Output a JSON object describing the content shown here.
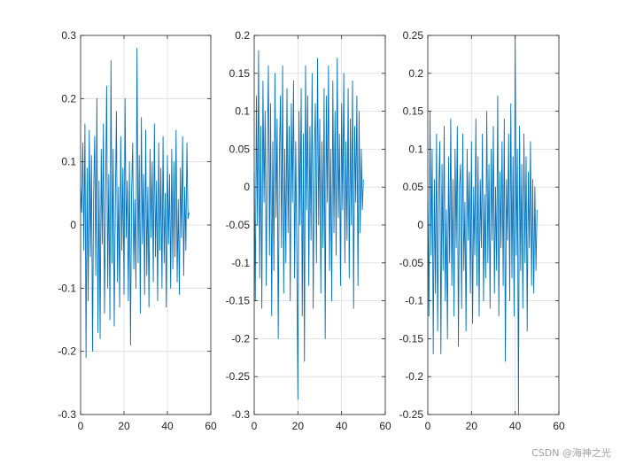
{
  "chart_data": [
    {
      "type": "line",
      "title": "",
      "xlabel": "",
      "ylabel": "",
      "xlim": [
        0,
        60
      ],
      "ylim": [
        -0.3,
        0.3
      ],
      "grid": true,
      "color": "#0072BD",
      "xticks": [
        0,
        20,
        40,
        60
      ],
      "xtick_labels": [
        "0",
        "20",
        "40",
        "60"
      ],
      "yticks": [
        -0.3,
        -0.2,
        -0.1,
        0,
        0.1,
        0.2,
        0.3
      ],
      "ytick_labels": [
        "-0.3",
        "-0.2",
        "-0.1",
        "0",
        "0.1",
        "0.2",
        "0.3"
      ],
      "series": [
        {
          "x": [
            0,
            0.5,
            1,
            1.5,
            2,
            2.5,
            3,
            3.5,
            4,
            4.5,
            5,
            5.5,
            6,
            6.5,
            7,
            7.5,
            8,
            8.5,
            9,
            9.5,
            10,
            10.5,
            11,
            11.5,
            12,
            12.5,
            13,
            13.5,
            14,
            14.5,
            15,
            15.5,
            16,
            16.5,
            17,
            17.5,
            18,
            18.5,
            19,
            19.5,
            20,
            20.5,
            21,
            21.5,
            22,
            22.5,
            23,
            23.5,
            24,
            24.5,
            25,
            25.5,
            26,
            26.5,
            27,
            27.5,
            28,
            28.5,
            29,
            29.5,
            30,
            30.5,
            31,
            31.5,
            32,
            32.5,
            33,
            33.5,
            34,
            34.5,
            35,
            35.5,
            36,
            36.5,
            37,
            37.5,
            38,
            38.5,
            39,
            39.5,
            40,
            40.5,
            41,
            41.5,
            42,
            42.5,
            43,
            43.5,
            44,
            44.5,
            45,
            45.5,
            46,
            46.5,
            47,
            47.5,
            48,
            48.5,
            49,
            49.5,
            50
          ],
          "y": [
            0.06,
            0.02,
            0.13,
            -0.04,
            0.16,
            -0.21,
            0.09,
            -0.12,
            0.15,
            -0.05,
            0.11,
            -0.2,
            0.05,
            0.14,
            -0.08,
            0.2,
            -0.17,
            0.07,
            -0.18,
            0.12,
            -0.03,
            0.16,
            -0.14,
            0.04,
            0.22,
            -0.1,
            0.08,
            -0.15,
            0.26,
            -0.06,
            0.12,
            -0.16,
            0.03,
            0.18,
            -0.09,
            0.06,
            -0.13,
            0.14,
            -0.04,
            0.09,
            -0.11,
            0.2,
            -0.02,
            0.07,
            -0.12,
            0.1,
            -0.19,
            0.05,
            0.13,
            -0.07,
            0.04,
            -0.1,
            0.28,
            -0.06,
            0.11,
            -0.14,
            0.17,
            -0.03,
            0.08,
            -0.11,
            0.15,
            -0.08,
            0.06,
            -0.13,
            0.12,
            -0.02,
            0.1,
            -0.09,
            0.16,
            -0.05,
            0.07,
            -0.12,
            0.13,
            -0.04,
            0.09,
            -0.1,
            0.14,
            -0.06,
            0.05,
            -0.13,
            0.11,
            -0.03,
            0.08,
            -0.1,
            0.12,
            -0.07,
            0.1,
            -0.05,
            0.15,
            -0.09,
            0.04,
            -0.11,
            0.09,
            -0.02,
            0.14,
            -0.08,
            0.06,
            -0.04,
            0.13,
            0.01,
            0.02
          ]
        }
      ]
    },
    {
      "type": "line",
      "title": "",
      "xlabel": "",
      "ylabel": "",
      "xlim": [
        0,
        60
      ],
      "ylim": [
        -0.3,
        0.2
      ],
      "grid": true,
      "color": "#0072BD",
      "xticks": [
        0,
        20,
        40,
        60
      ],
      "xtick_labels": [
        "0",
        "20",
        "40",
        "60"
      ],
      "yticks": [
        -0.3,
        -0.25,
        -0.2,
        -0.15,
        -0.1,
        -0.05,
        0,
        0.05,
        0.1,
        0.15,
        0.2
      ],
      "ytick_labels": [
        "-0.3",
        "-0.25",
        "-0.2",
        "-0.15",
        "-0.1",
        "-0.05",
        "0",
        "0.05",
        "0.1",
        "0.15",
        "0.2"
      ],
      "series": [
        {
          "x": [
            0,
            0.5,
            1,
            1.5,
            2,
            2.5,
            3,
            3.5,
            4,
            4.5,
            5,
            5.5,
            6,
            6.5,
            7,
            7.5,
            8,
            8.5,
            9,
            9.5,
            10,
            10.5,
            11,
            11.5,
            12,
            12.5,
            13,
            13.5,
            14,
            14.5,
            15,
            15.5,
            16,
            16.5,
            17,
            17.5,
            18,
            18.5,
            19,
            19.5,
            20,
            20.5,
            21,
            21.5,
            22,
            22.5,
            23,
            23.5,
            24,
            24.5,
            25,
            25.5,
            26,
            26.5,
            27,
            27.5,
            28,
            28.5,
            29,
            29.5,
            30,
            30.5,
            31,
            31.5,
            32,
            32.5,
            33,
            33.5,
            34,
            34.5,
            35,
            35.5,
            36,
            36.5,
            37,
            37.5,
            38,
            38.5,
            39,
            39.5,
            40,
            40.5,
            41,
            41.5,
            42,
            42.5,
            43,
            43.5,
            44,
            44.5,
            45,
            45.5,
            46,
            46.5,
            47,
            47.5,
            48,
            48.5,
            49,
            49.5,
            50
          ],
          "y": [
            0.02,
            -0.15,
            0.12,
            -0.05,
            0.18,
            -0.12,
            0.08,
            -0.16,
            0.14,
            -0.02,
            0.1,
            -0.13,
            0.04,
            0.16,
            -0.09,
            0.11,
            -0.17,
            0.06,
            -0.11,
            0.15,
            -0.04,
            0.09,
            -0.2,
            0.03,
            0.12,
            -0.08,
            0.16,
            -0.14,
            0.05,
            -0.1,
            0.13,
            -0.06,
            0.08,
            -0.15,
            0.11,
            -0.02,
            0.14,
            -0.12,
            0.06,
            -0.09,
            -0.28,
            0.1,
            -0.05,
            0.13,
            -0.17,
            0.07,
            -0.23,
            0.16,
            -0.03,
            0.12,
            -0.13,
            0.08,
            -0.07,
            0.15,
            -0.16,
            0.04,
            0.11,
            -0.1,
            0.17,
            -0.05,
            0.09,
            -0.14,
            0.06,
            -0.08,
            0.13,
            -0.2,
            0.12,
            -0.02,
            0.16,
            -0.11,
            0.05,
            -0.15,
            0.14,
            -0.06,
            0.1,
            -0.09,
            0.17,
            -0.04,
            0.07,
            -0.13,
            0.11,
            -0.03,
            0.15,
            -0.1,
            0.06,
            -0.07,
            0.13,
            -0.12,
            0.09,
            -0.05,
            0.14,
            -0.16,
            0.08,
            -0.02,
            0.12,
            -0.13,
            0.1,
            -0.06,
            0.05,
            -0.03,
            0.01
          ]
        }
      ]
    },
    {
      "type": "line",
      "title": "",
      "xlabel": "",
      "ylabel": "",
      "xlim": [
        0,
        60
      ],
      "ylim": [
        -0.25,
        0.25
      ],
      "grid": true,
      "color": "#0072BD",
      "xticks": [
        0,
        20,
        40,
        60
      ],
      "xtick_labels": [
        "0",
        "20",
        "40",
        "60"
      ],
      "yticks": [
        -0.25,
        -0.2,
        -0.15,
        -0.1,
        -0.05,
        0,
        0.05,
        0.1,
        0.15,
        0.2,
        0.25
      ],
      "ytick_labels": [
        "-0.25",
        "-0.2",
        "-0.15",
        "-0.1",
        "-0.05",
        "0",
        "0.05",
        "0.1",
        "0.15",
        "0.2",
        "0.25"
      ],
      "series": [
        {
          "x": [
            0,
            0.5,
            1,
            1.5,
            2,
            2.5,
            3,
            3.5,
            4,
            4.5,
            5,
            5.5,
            6,
            6.5,
            7,
            7.5,
            8,
            8.5,
            9,
            9.5,
            10,
            10.5,
            11,
            11.5,
            12,
            12.5,
            13,
            13.5,
            14,
            14.5,
            15,
            15.5,
            16,
            16.5,
            17,
            17.5,
            18,
            18.5,
            19,
            19.5,
            20,
            20.5,
            21,
            21.5,
            22,
            22.5,
            23,
            23.5,
            24,
            24.5,
            25,
            25.5,
            26,
            26.5,
            27,
            27.5,
            28,
            28.5,
            29,
            29.5,
            30,
            30.5,
            31,
            31.5,
            32,
            32.5,
            33,
            33.5,
            34,
            34.5,
            35,
            35.5,
            36,
            36.5,
            37,
            37.5,
            38,
            38.5,
            39,
            39.5,
            40,
            40.5,
            41,
            41.5,
            42,
            42.5,
            43,
            43.5,
            44,
            44.5,
            45,
            45.5,
            46,
            46.5,
            47,
            47.5,
            48,
            48.5,
            49,
            49.5,
            50
          ],
          "y": [
            0.03,
            -0.12,
            0.15,
            -0.04,
            0.1,
            -0.17,
            0.06,
            -0.09,
            0.12,
            -0.14,
            0.04,
            0.11,
            -0.17,
            0.08,
            -0.06,
            0.13,
            -0.1,
            0.02,
            -0.15,
            0.09,
            -0.05,
            0.14,
            -0.08,
            0.06,
            -0.12,
            0.1,
            -0.03,
            0.13,
            -0.16,
            0.05,
            0.08,
            -0.11,
            0.12,
            -0.06,
            0.03,
            -0.14,
            0.1,
            -0.02,
            0.07,
            -0.09,
            0.11,
            -0.13,
            0.05,
            -0.04,
            0.14,
            -0.08,
            0.09,
            -0.12,
            0.06,
            -0.03,
            0.12,
            -0.1,
            0.04,
            -0.07,
            0.15,
            -0.05,
            0.08,
            -0.11,
            0.1,
            -0.02,
            0.13,
            -0.09,
            0.05,
            -0.06,
            0.17,
            -0.12,
            0.07,
            -0.03,
            0.11,
            -0.08,
            0.14,
            -0.18,
            0.06,
            -0.02,
            0.12,
            -0.1,
            0.16,
            -0.07,
            0.09,
            -0.12,
            0.25,
            -0.04,
            0.1,
            -0.25,
            0.13,
            -0.06,
            0.08,
            -0.11,
            0.12,
            -0.05,
            0.09,
            -0.14,
            0.07,
            -0.03,
            0.11,
            -0.08,
            0.06,
            -0.09,
            0.05,
            -0.06,
            0.02
          ]
        }
      ]
    }
  ],
  "watermark": "CSDN @海神之光"
}
